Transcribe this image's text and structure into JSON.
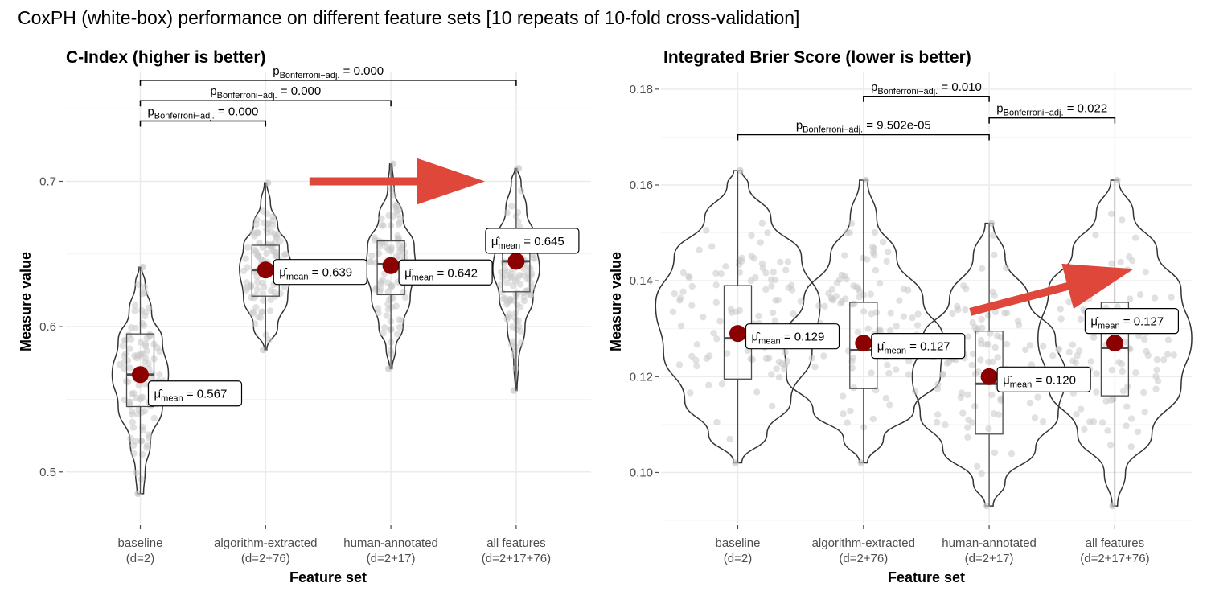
{
  "figure_title": "CoxPH (white-box) performance on different feature sets [10 repeats of 10-fold cross-validation]",
  "p_symbol": "p",
  "p_subscript": "Bonferroni−adj.",
  "mu_symbol": "μ̂",
  "mu_subscript": "mean",
  "colors": {
    "mean_point": "#8b0000",
    "arrow": "#e0473b",
    "jitter": "#c8c8c8",
    "grid": "#ebebeb"
  },
  "chart_data": [
    {
      "type": "violin",
      "title": "C-Index (higher is better)",
      "xlabel": "Feature set",
      "ylabel": "Measure value",
      "ylim": [
        0.465,
        0.775
      ],
      "yticks": [
        0.5,
        0.6,
        0.7
      ],
      "ytick_labels": [
        "0.5",
        "0.6",
        "0.7"
      ],
      "grid": true,
      "categories": [
        {
          "name": "baseline",
          "dim": "(d=2)",
          "min": 0.485,
          "max": 0.641,
          "q1": 0.545,
          "median": 0.567,
          "q3": 0.595,
          "mean": 0.567,
          "mean_label": "0.567",
          "violin": [
            [
              0.485,
              0.008
            ],
            [
              0.5,
              0.012
            ],
            [
              0.52,
              0.025
            ],
            [
              0.545,
              0.055
            ],
            [
              0.567,
              0.07
            ],
            [
              0.59,
              0.055
            ],
            [
              0.61,
              0.028
            ],
            [
              0.63,
              0.012
            ],
            [
              0.641,
              0.003
            ]
          ]
        },
        {
          "name": "algorithm-extracted",
          "dim": "(d=2+76)",
          "min": 0.584,
          "max": 0.699,
          "q1": 0.621,
          "median": 0.639,
          "q3": 0.656,
          "mean": 0.639,
          "mean_label": "0.639",
          "violin": [
            [
              0.584,
              0.003
            ],
            [
              0.6,
              0.03
            ],
            [
              0.62,
              0.055
            ],
            [
              0.64,
              0.065
            ],
            [
              0.655,
              0.055
            ],
            [
              0.67,
              0.03
            ],
            [
              0.685,
              0.012
            ],
            [
              0.699,
              0.003
            ]
          ]
        },
        {
          "name": "human-annotated",
          "dim": "(d=2+17)",
          "min": 0.571,
          "max": 0.712,
          "q1": 0.622,
          "median": 0.643,
          "q3": 0.659,
          "mean": 0.642,
          "mean_label": "0.642",
          "violin": [
            [
              0.571,
              0.003
            ],
            [
              0.585,
              0.012
            ],
            [
              0.6,
              0.03
            ],
            [
              0.62,
              0.048
            ],
            [
              0.64,
              0.062
            ],
            [
              0.655,
              0.058
            ],
            [
              0.675,
              0.03
            ],
            [
              0.695,
              0.008
            ],
            [
              0.712,
              0.003
            ]
          ]
        },
        {
          "name": "all features",
          "dim": "(d=2+17+76)",
          "min": 0.556,
          "max": 0.709,
          "q1": 0.624,
          "median": 0.645,
          "q3": 0.658,
          "mean": 0.645,
          "mean_label": "0.645",
          "violin": [
            [
              0.556,
              0.002
            ],
            [
              0.575,
              0.006
            ],
            [
              0.6,
              0.022
            ],
            [
              0.62,
              0.042
            ],
            [
              0.64,
              0.058
            ],
            [
              0.66,
              0.048
            ],
            [
              0.68,
              0.026
            ],
            [
              0.7,
              0.012
            ],
            [
              0.709,
              0.003
            ]
          ]
        }
      ],
      "comparisons": [
        {
          "from": 0,
          "to": 1,
          "y": 0.7415,
          "label": "0.000"
        },
        {
          "from": 0,
          "to": 2,
          "y": 0.7555,
          "label": "0.000"
        },
        {
          "from": 0,
          "to": 3,
          "y": 0.7695,
          "label": "0.000"
        }
      ],
      "arrow": {
        "from": [
          2.35,
          0.7
        ],
        "to": [
          3.75,
          0.7
        ]
      }
    },
    {
      "type": "violin",
      "title": "Integrated Brier Score (lower is better)",
      "xlabel": "Feature set",
      "ylabel": "Measure value",
      "ylim": [
        0.0895,
        0.1835
      ],
      "yticks": [
        0.1,
        0.12,
        0.14,
        0.16,
        0.18
      ],
      "ytick_labels": [
        "0.10",
        "0.12",
        "0.14",
        "0.16",
        "0.18"
      ],
      "grid": true,
      "categories": [
        {
          "name": "baseline",
          "dim": "(d=2)",
          "min": 0.102,
          "max": 0.163,
          "q1": 0.1195,
          "median": 0.128,
          "q3": 0.139,
          "mean": 0.129,
          "mean_label": "0.129",
          "violin": [
            [
              0.102,
              0.003
            ],
            [
              0.108,
              0.022
            ],
            [
              0.115,
              0.04
            ],
            [
              0.125,
              0.056
            ],
            [
              0.135,
              0.062
            ],
            [
              0.145,
              0.048
            ],
            [
              0.153,
              0.025
            ],
            [
              0.16,
              0.008
            ],
            [
              0.163,
              0.003
            ]
          ]
        },
        {
          "name": "algorithm-extracted",
          "dim": "(d=2+76)",
          "min": 0.102,
          "max": 0.161,
          "q1": 0.1175,
          "median": 0.1255,
          "q3": 0.1355,
          "mean": 0.127,
          "mean_label": "0.127",
          "violin": [
            [
              0.102,
              0.003
            ],
            [
              0.107,
              0.015
            ],
            [
              0.113,
              0.038
            ],
            [
              0.12,
              0.058
            ],
            [
              0.128,
              0.06
            ],
            [
              0.136,
              0.045
            ],
            [
              0.145,
              0.025
            ],
            [
              0.153,
              0.01
            ],
            [
              0.161,
              0.003
            ]
          ]
        },
        {
          "name": "human-annotated",
          "dim": "(d=2+17)",
          "min": 0.093,
          "max": 0.152,
          "q1": 0.108,
          "median": 0.1185,
          "q3": 0.1295,
          "mean": 0.12,
          "mean_label": "0.120",
          "violin": [
            [
              0.093,
              0.003
            ],
            [
              0.098,
              0.012
            ],
            [
              0.105,
              0.035
            ],
            [
              0.112,
              0.052
            ],
            [
              0.12,
              0.058
            ],
            [
              0.128,
              0.05
            ],
            [
              0.136,
              0.03
            ],
            [
              0.145,
              0.012
            ],
            [
              0.152,
              0.003
            ]
          ]
        },
        {
          "name": "all features",
          "dim": "(d=2+17+76)",
          "min": 0.093,
          "max": 0.161,
          "q1": 0.116,
          "median": 0.126,
          "q3": 0.1355,
          "mean": 0.127,
          "mean_label": "0.127",
          "violin": [
            [
              0.093,
              0.002
            ],
            [
              0.1,
              0.008
            ],
            [
              0.108,
              0.028
            ],
            [
              0.118,
              0.05
            ],
            [
              0.128,
              0.058
            ],
            [
              0.138,
              0.05
            ],
            [
              0.146,
              0.032
            ],
            [
              0.154,
              0.014
            ],
            [
              0.161,
              0.003
            ]
          ]
        }
      ],
      "comparisons": [
        {
          "from": 1,
          "to": 2,
          "y": 0.1785,
          "label": "0.010"
        },
        {
          "from": 2,
          "to": 3,
          "y": 0.174,
          "label": "0.022"
        },
        {
          "from": 0,
          "to": 2,
          "y": 0.1705,
          "label": "9.502e-05"
        }
      ],
      "arrow": {
        "from": [
          2.85,
          0.1335
        ],
        "to": [
          4.15,
          0.1425
        ]
      }
    }
  ]
}
